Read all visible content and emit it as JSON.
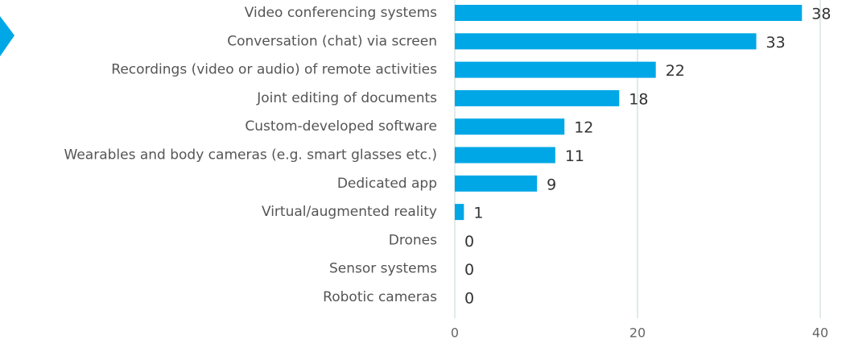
{
  "chart_data": {
    "type": "bar",
    "orientation": "horizontal",
    "categories": [
      "Video conferencing systems",
      "Conversation (chat) via screen",
      "Recordings (video or audio) of remote activities",
      "Joint editing of documents",
      "Custom-developed software",
      "Wearables and body cameras (e.g. smart glasses etc.)",
      "Dedicated app",
      "Virtual/augmented reality",
      "Drones",
      "Sensor systems",
      "Robotic cameras"
    ],
    "values": [
      38,
      33,
      22,
      18,
      12,
      11,
      9,
      1,
      0,
      0,
      0
    ],
    "color": "#00a7e6",
    "xlim": [
      0,
      40
    ],
    "xticks": [
      0,
      20,
      40
    ],
    "grid": true
  }
}
